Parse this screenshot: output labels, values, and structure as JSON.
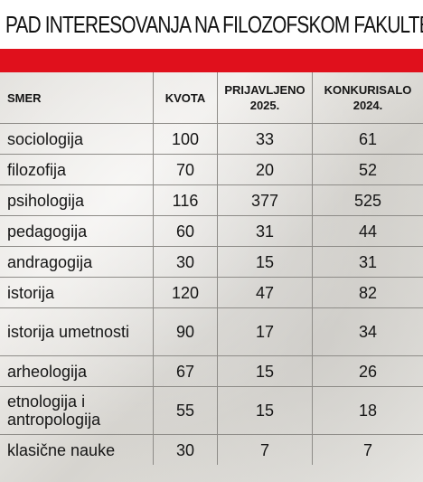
{
  "title": "PAD INTERESOVANJA NA FILOZOFSKOM FAKULTETU BU",
  "table": {
    "headers": [
      "SMER",
      "KVOTA",
      "PRIJAVLJENO 2025.",
      "KONKURISALO 2024."
    ],
    "rows": [
      [
        "sociologija",
        "100",
        "33",
        "61"
      ],
      [
        "filozofija",
        "70",
        "20",
        "52"
      ],
      [
        "psihologija",
        "116",
        "377",
        "525"
      ],
      [
        "pedagogija",
        "60",
        "31",
        "44"
      ],
      [
        "andragogija",
        "30",
        "15",
        "31"
      ],
      [
        "istorija",
        "120",
        "47",
        "82"
      ],
      [
        "istorija umetnosti",
        "90",
        "17",
        "34"
      ],
      [
        "arheologija",
        "67",
        "15",
        "26"
      ],
      [
        "etnologija i antropologija",
        "55",
        "15",
        "18"
      ],
      [
        "klasične nauke",
        "30",
        "7",
        "7"
      ]
    ]
  },
  "colors": {
    "accent_red": "#e0101c",
    "grid_line": "#8e8c88"
  }
}
